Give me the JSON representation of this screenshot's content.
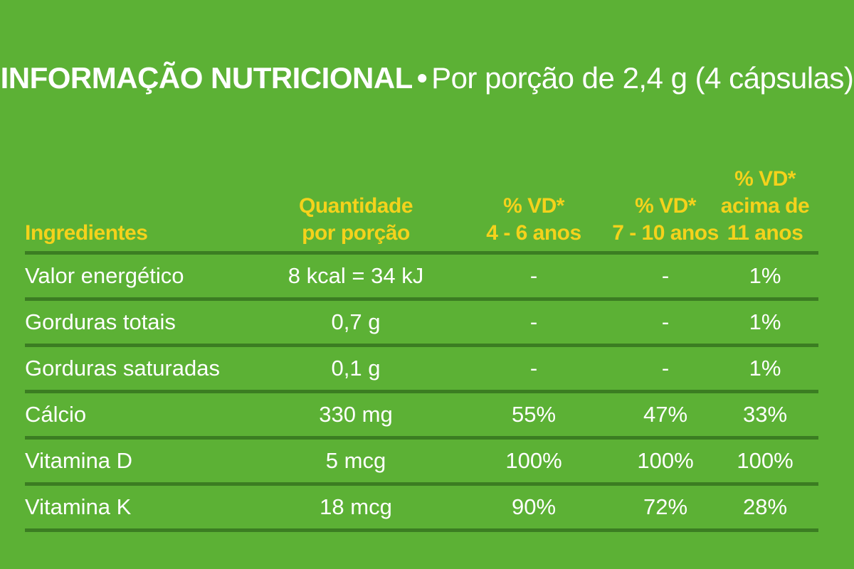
{
  "title": {
    "bold": "INFORMAÇÃO NUTRICIONAL",
    "bullet": "•",
    "normal": "Por porção de 2,4 g (4 cápsulas)"
  },
  "headers": [
    [
      "Ingredientes"
    ],
    [
      "Quantidade",
      "por porção"
    ],
    [
      "% VD*",
      "4 - 6 anos"
    ],
    [
      "% VD*",
      "7 - 10 anos"
    ],
    [
      "% VD*",
      "acima de",
      "11 anos"
    ]
  ],
  "rows": [
    [
      "Valor energético",
      "8 kcal = 34 kJ",
      "-",
      "-",
      "1%"
    ],
    [
      "Gorduras totais",
      "0,7 g",
      "-",
      "-",
      "1%"
    ],
    [
      "Gorduras saturadas",
      "0,1 g",
      "-",
      "-",
      "1%"
    ],
    [
      "Cálcio",
      "330 mg",
      "55%",
      "47%",
      "33%"
    ],
    [
      "Vitamina D",
      "5 mcg",
      "100%",
      "100%",
      "100%"
    ],
    [
      "Vitamina K",
      "18 mcg",
      "90%",
      "72%",
      "28%"
    ]
  ],
  "colors": {
    "background": "#5cb135",
    "header_text": "#f4d21c",
    "rule": "#3b7d22",
    "text": "#ffffff"
  }
}
